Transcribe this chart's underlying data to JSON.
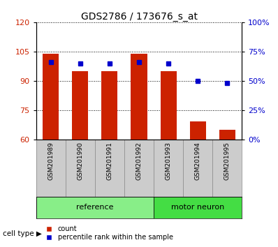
{
  "title": "GDS2786 / 173676_s_at",
  "samples": [
    "GSM201989",
    "GSM201990",
    "GSM201991",
    "GSM201992",
    "GSM201993",
    "GSM201994",
    "GSM201995"
  ],
  "counts": [
    104,
    95,
    95,
    104,
    95,
    69,
    65
  ],
  "percentiles": [
    66,
    65,
    65,
    66,
    65,
    50,
    48
  ],
  "bar_bottom": 60,
  "ylim_left": [
    60,
    120
  ],
  "ylim_right": [
    0,
    100
  ],
  "yticks_left": [
    60,
    75,
    90,
    105,
    120
  ],
  "yticks_right": [
    0,
    25,
    50,
    75,
    100
  ],
  "yticklabels_right": [
    "0%",
    "25%",
    "50%",
    "75%",
    "100%"
  ],
  "bar_color": "#cc2200",
  "dot_color": "#0000cc",
  "groups": [
    {
      "label": "reference",
      "indices": [
        0,
        1,
        2,
        3
      ],
      "color": "#88ee88"
    },
    {
      "label": "motor neuron",
      "indices": [
        4,
        5,
        6
      ],
      "color": "#44dd44"
    }
  ],
  "cell_type_label": "cell type",
  "legend_count": "count",
  "legend_percentile": "percentile rank within the sample",
  "grid_color": "black",
  "tick_label_color_left": "#cc2200",
  "tick_label_color_right": "#0000cc",
  "bg_color_xticklabels": "#cccccc",
  "fig_width": 3.98,
  "fig_height": 3.54,
  "dpi": 100
}
